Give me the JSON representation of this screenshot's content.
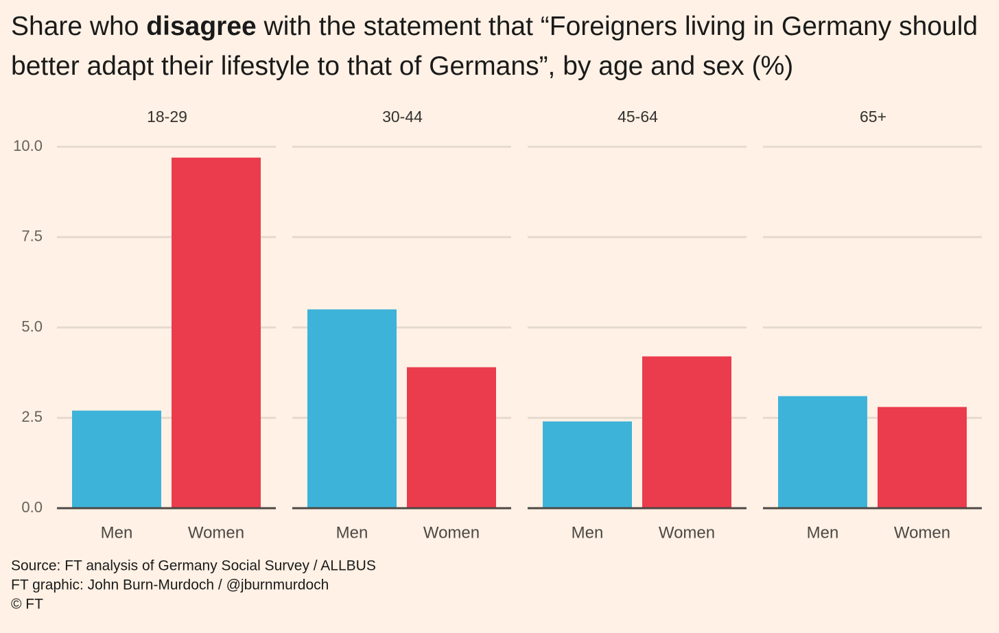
{
  "chart_data": {
    "type": "bar",
    "title": "Share who disagree with the statement that “Foreigners living in Germany should better adapt their lifestyle to that of Germans”, by age and sex (%)",
    "title_bold": "disagree",
    "categories": [
      "18-29",
      "30-44",
      "45-64",
      "65+"
    ],
    "series": [
      {
        "name": "Men",
        "color": "#3db3d9",
        "values": [
          2.7,
          5.5,
          2.4,
          3.1
        ]
      },
      {
        "name": "Women",
        "color": "#ea3c4d",
        "values": [
          9.7,
          3.9,
          4.2,
          2.8
        ]
      }
    ],
    "ylim": [
      0,
      10
    ],
    "yticks": [
      {
        "value": 0,
        "label": "0.0"
      },
      2.5,
      {
        "value": 5,
        "label": "5.0"
      },
      7.5,
      {
        "value": 10,
        "label": "10.0"
      }
    ],
    "grid": true,
    "source": [
      "Source: FT analysis of Germany Social Survey / ALLBUS",
      "FT graphic: John Burn-Murdoch / @jburnmurdoch",
      "© FT"
    ]
  }
}
